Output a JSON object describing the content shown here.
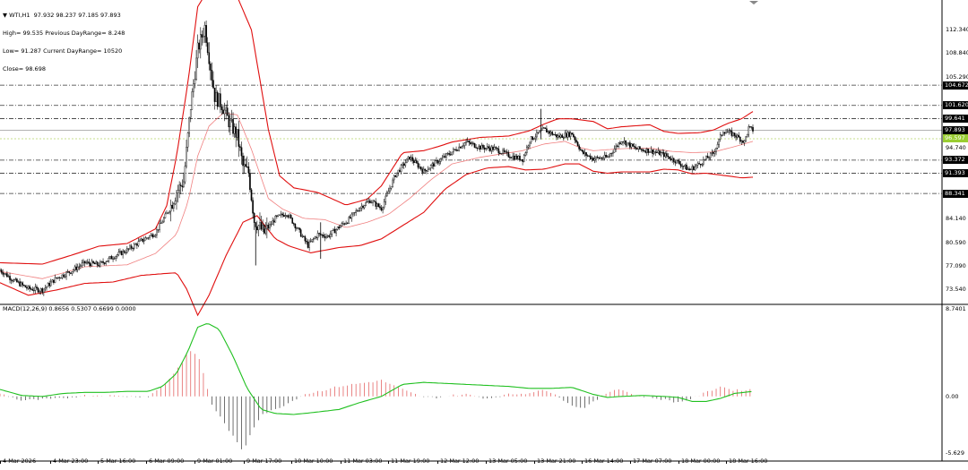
{
  "header": {
    "symbol_line": "WTI,H1  97.932 98.237 97.185 97.893",
    "lines": [
      "High= 99.535 Previous DayRange= 8.248",
      "Low= 91.287 Current DayRange= 10520",
      "Close= 98.698"
    ]
  },
  "macd_label": "MACD(12,26,9) 0.8656 0.5307 0.6699 0.0000",
  "price_axis": {
    "ticks": [
      "112.340",
      "108.840",
      "105.290",
      "94.740",
      "87.690",
      "84.140",
      "80.590",
      "77.090",
      "73.540"
    ],
    "levels": [
      {
        "label": "104.672",
        "bg": "#000000",
        "fg": "#ffffff"
      },
      {
        "label": "101.620",
        "bg": "#000000",
        "fg": "#ffffff"
      },
      {
        "label": "99.641",
        "bg": "#000000",
        "fg": "#ffffff"
      },
      {
        "label": "97.893",
        "bg": "#000000",
        "fg": "#ffffff"
      },
      {
        "label": "96.597",
        "bg": "#9acd32",
        "fg": "#ffffff"
      },
      {
        "label": "93.372",
        "bg": "#000000",
        "fg": "#ffffff"
      },
      {
        "label": "91.393",
        "bg": "#000000",
        "fg": "#ffffff"
      },
      {
        "label": "88.341",
        "bg": "#000000",
        "fg": "#ffffff"
      }
    ]
  },
  "macd_axis": {
    "ticks": [
      "8.7401",
      "0.00",
      "-5.629"
    ]
  },
  "time_axis": {
    "ticks": [
      "4 Mar 2026",
      "4 Mar 23:00",
      "5 Mar 16:00",
      "6 Mar 09:00",
      "9 Mar 01:00",
      "9 Mar 17:00",
      "10 Mar 10:00",
      "11 Mar 03:00",
      "11 Mar 19:00",
      "12 Mar 12:00",
      "13 Mar 05:00",
      "13 Mar 21:00",
      "16 Mar 14:00",
      "17 Mar 07:00",
      "18 Mar 00:00",
      "18 Mar 16:00"
    ]
  },
  "colors": {
    "bollinger": "#e01010",
    "ma": "#f08080",
    "signal": "#20c020",
    "hist_pos": "#e05050",
    "hist_neg": "#333333",
    "candle": "#000000"
  },
  "chart_data": {
    "type": "candlestick",
    "price_key_points": [
      [
        0,
        76.8
      ],
      [
        10,
        75.2
      ],
      [
        20,
        74.0
      ],
      [
        30,
        73.8
      ],
      [
        40,
        75.6
      ],
      [
        50,
        76.6
      ],
      [
        60,
        77.9
      ],
      [
        70,
        77.6
      ],
      [
        80,
        78.8
      ],
      [
        90,
        79.8
      ],
      [
        100,
        81.2
      ],
      [
        110,
        82.4
      ],
      [
        120,
        86.0
      ],
      [
        125,
        88.6
      ],
      [
        130,
        90.2
      ],
      [
        135,
        101.5
      ],
      [
        140,
        110.0
      ],
      [
        145,
        113.5
      ],
      [
        148,
        109.0
      ],
      [
        152,
        103.0
      ],
      [
        157,
        101.8
      ],
      [
        162,
        99.2
      ],
      [
        168,
        97.0
      ],
      [
        172,
        92.4
      ],
      [
        176,
        91.5
      ],
      [
        180,
        84.3
      ],
      [
        187,
        82.4
      ],
      [
        195,
        84.6
      ],
      [
        203,
        85.4
      ],
      [
        210,
        83.2
      ],
      [
        218,
        80.5
      ],
      [
        225,
        82.2
      ],
      [
        232,
        81.9
      ],
      [
        240,
        83.3
      ],
      [
        247,
        84.4
      ],
      [
        255,
        86.3
      ],
      [
        262,
        87.3
      ],
      [
        270,
        86.1
      ],
      [
        280,
        91.2
      ],
      [
        290,
        93.8
      ],
      [
        300,
        91.7
      ],
      [
        310,
        93.2
      ],
      [
        320,
        94.6
      ],
      [
        330,
        96.1
      ],
      [
        340,
        95.3
      ],
      [
        350,
        95.1
      ],
      [
        360,
        94.1
      ],
      [
        370,
        93.5
      ],
      [
        375,
        96.4
      ],
      [
        385,
        98.0
      ],
      [
        395,
        96.9
      ],
      [
        405,
        97.4
      ],
      [
        412,
        94.5
      ],
      [
        420,
        93.6
      ],
      [
        430,
        93.8
      ],
      [
        440,
        96.4
      ],
      [
        450,
        95.1
      ],
      [
        460,
        94.8
      ],
      [
        470,
        94.2
      ],
      [
        478,
        93.3
      ],
      [
        488,
        91.9
      ],
      [
        495,
        92.8
      ],
      [
        505,
        94.4
      ],
      [
        512,
        97.8
      ],
      [
        520,
        97.2
      ],
      [
        527,
        96.1
      ],
      [
        530,
        98.2
      ],
      [
        533,
        97.9
      ]
    ],
    "bollinger_upper_key": [
      [
        0,
        77.9
      ],
      [
        30,
        77.7
      ],
      [
        50,
        79.0
      ],
      [
        70,
        80.4
      ],
      [
        90,
        80.8
      ],
      [
        110,
        83.0
      ],
      [
        118,
        86.5
      ],
      [
        125,
        94.0
      ],
      [
        133,
        105.0
      ],
      [
        140,
        116.5
      ],
      [
        150,
        120.0
      ],
      [
        168,
        118.0
      ],
      [
        178,
        113.0
      ],
      [
        190,
        98.0
      ],
      [
        198,
        91.0
      ],
      [
        208,
        89.2
      ],
      [
        225,
        88.5
      ],
      [
        245,
        86.6
      ],
      [
        260,
        87.5
      ],
      [
        270,
        89.5
      ],
      [
        285,
        94.5
      ],
      [
        300,
        94.8
      ],
      [
        310,
        95.4
      ],
      [
        320,
        96.1
      ],
      [
        340,
        96.8
      ],
      [
        360,
        97.0
      ],
      [
        375,
        97.8
      ],
      [
        385,
        98.8
      ],
      [
        395,
        99.6
      ],
      [
        405,
        99.6
      ],
      [
        420,
        99.2
      ],
      [
        430,
        98.1
      ],
      [
        440,
        98.4
      ],
      [
        460,
        98.7
      ],
      [
        470,
        97.7
      ],
      [
        480,
        97.4
      ],
      [
        495,
        97.5
      ],
      [
        505,
        97.9
      ],
      [
        515,
        98.9
      ],
      [
        525,
        99.6
      ],
      [
        533,
        100.7
      ]
    ],
    "bollinger_lower_key": [
      [
        0,
        74.9
      ],
      [
        20,
        73.0
      ],
      [
        40,
        73.8
      ],
      [
        60,
        74.8
      ],
      [
        80,
        75.0
      ],
      [
        100,
        76.0
      ],
      [
        118,
        76.3
      ],
      [
        125,
        76.4
      ],
      [
        132,
        74.0
      ],
      [
        140,
        70.0
      ],
      [
        148,
        73.0
      ],
      [
        160,
        79.0
      ],
      [
        172,
        84.0
      ],
      [
        182,
        85.0
      ],
      [
        195,
        81.5
      ],
      [
        205,
        80.4
      ],
      [
        220,
        79.4
      ],
      [
        240,
        80.2
      ],
      [
        255,
        80.5
      ],
      [
        270,
        81.5
      ],
      [
        285,
        83.5
      ],
      [
        300,
        85.5
      ],
      [
        315,
        89.0
      ],
      [
        330,
        91.2
      ],
      [
        345,
        92.2
      ],
      [
        360,
        92.4
      ],
      [
        372,
        91.9
      ],
      [
        385,
        92.0
      ],
      [
        400,
        92.8
      ],
      [
        410,
        92.8
      ],
      [
        420,
        91.7
      ],
      [
        430,
        91.4
      ],
      [
        440,
        91.6
      ],
      [
        460,
        91.6
      ],
      [
        470,
        92.0
      ],
      [
        480,
        91.9
      ],
      [
        490,
        91.3
      ],
      [
        500,
        91.4
      ],
      [
        515,
        91.0
      ],
      [
        525,
        90.7
      ],
      [
        533,
        90.8
      ]
    ],
    "ma_key": [
      [
        0,
        76.6
      ],
      [
        30,
        75.5
      ],
      [
        60,
        77.3
      ],
      [
        90,
        77.6
      ],
      [
        110,
        79.3
      ],
      [
        125,
        82.2
      ],
      [
        133,
        87.0
      ],
      [
        140,
        94.0
      ],
      [
        148,
        98.5
      ],
      [
        158,
        100.5
      ],
      [
        168,
        100.2
      ],
      [
        178,
        95.0
      ],
      [
        190,
        87.6
      ],
      [
        200,
        86.0
      ],
      [
        215,
        84.6
      ],
      [
        230,
        84.4
      ],
      [
        245,
        83.2
      ],
      [
        260,
        84.0
      ],
      [
        275,
        85.2
      ],
      [
        290,
        87.6
      ],
      [
        305,
        90.4
      ],
      [
        320,
        92.8
      ],
      [
        340,
        93.8
      ],
      [
        355,
        94.3
      ],
      [
        370,
        94.8
      ],
      [
        385,
        95.8
      ],
      [
        400,
        96.2
      ],
      [
        410,
        95.3
      ],
      [
        420,
        94.8
      ],
      [
        440,
        95.1
      ],
      [
        460,
        95.2
      ],
      [
        475,
        94.7
      ],
      [
        490,
        94.5
      ],
      [
        505,
        94.6
      ],
      [
        520,
        95.4
      ],
      [
        533,
        96.2
      ]
    ],
    "macd_signal_key": [
      [
        0,
        0.7
      ],
      [
        15,
        0.1
      ],
      [
        30,
        0.0
      ],
      [
        45,
        0.3
      ],
      [
        60,
        0.4
      ],
      [
        75,
        0.4
      ],
      [
        90,
        0.5
      ],
      [
        105,
        0.5
      ],
      [
        115,
        1.0
      ],
      [
        125,
        2.3
      ],
      [
        133,
        4.5
      ],
      [
        140,
        6.9
      ],
      [
        147,
        7.3
      ],
      [
        155,
        6.7
      ],
      [
        165,
        4.0
      ],
      [
        175,
        0.8
      ],
      [
        185,
        -1.3
      ],
      [
        195,
        -1.7
      ],
      [
        208,
        -1.8
      ],
      [
        222,
        -1.6
      ],
      [
        240,
        -1.3
      ],
      [
        255,
        -0.6
      ],
      [
        270,
        0.0
      ],
      [
        285,
        1.2
      ],
      [
        300,
        1.4
      ],
      [
        315,
        1.3
      ],
      [
        330,
        1.2
      ],
      [
        345,
        1.1
      ],
      [
        360,
        1.0
      ],
      [
        375,
        0.8
      ],
      [
        390,
        0.8
      ],
      [
        405,
        0.9
      ],
      [
        420,
        0.2
      ],
      [
        430,
        -0.1
      ],
      [
        440,
        0.0
      ],
      [
        455,
        0.1
      ],
      [
        470,
        0.0
      ],
      [
        480,
        -0.1
      ],
      [
        490,
        -0.5
      ],
      [
        500,
        -0.5
      ],
      [
        510,
        -0.2
      ],
      [
        520,
        0.3
      ],
      [
        533,
        0.5
      ]
    ],
    "macd_hist_key": [
      [
        0,
        0.3
      ],
      [
        15,
        -0.4
      ],
      [
        30,
        -0.3
      ],
      [
        45,
        -0.2
      ],
      [
        60,
        0.1
      ],
      [
        75,
        0.1
      ],
      [
        90,
        0.0
      ],
      [
        105,
        0.0
      ],
      [
        115,
        1.0
      ],
      [
        125,
        2.6
      ],
      [
        133,
        4.5
      ],
      [
        140,
        4.2
      ],
      [
        145,
        1.8
      ],
      [
        150,
        -0.8
      ],
      [
        158,
        -2.5
      ],
      [
        165,
        -4.0
      ],
      [
        172,
        -5.5
      ],
      [
        178,
        -3.5
      ],
      [
        185,
        -1.8
      ],
      [
        195,
        -1.3
      ],
      [
        205,
        -0.6
      ],
      [
        215,
        0.2
      ],
      [
        225,
        0.5
      ],
      [
        240,
        1.0
      ],
      [
        255,
        1.3
      ],
      [
        270,
        1.6
      ],
      [
        280,
        1.0
      ],
      [
        290,
        0.4
      ],
      [
        300,
        -0.1
      ],
      [
        310,
        -0.1
      ],
      [
        320,
        0.1
      ],
      [
        330,
        0.2
      ],
      [
        345,
        -0.2
      ],
      [
        360,
        0.2
      ],
      [
        372,
        0.3
      ],
      [
        382,
        0.6
      ],
      [
        392,
        0.4
      ],
      [
        402,
        -0.7
      ],
      [
        412,
        -1.2
      ],
      [
        420,
        -0.6
      ],
      [
        430,
        0.4
      ],
      [
        438,
        0.8
      ],
      [
        448,
        0.2
      ],
      [
        460,
        -0.1
      ],
      [
        470,
        -0.3
      ],
      [
        480,
        -0.6
      ],
      [
        490,
        -0.2
      ],
      [
        500,
        0.4
      ],
      [
        510,
        1.0
      ],
      [
        520,
        0.6
      ],
      [
        533,
        0.7
      ]
    ]
  }
}
